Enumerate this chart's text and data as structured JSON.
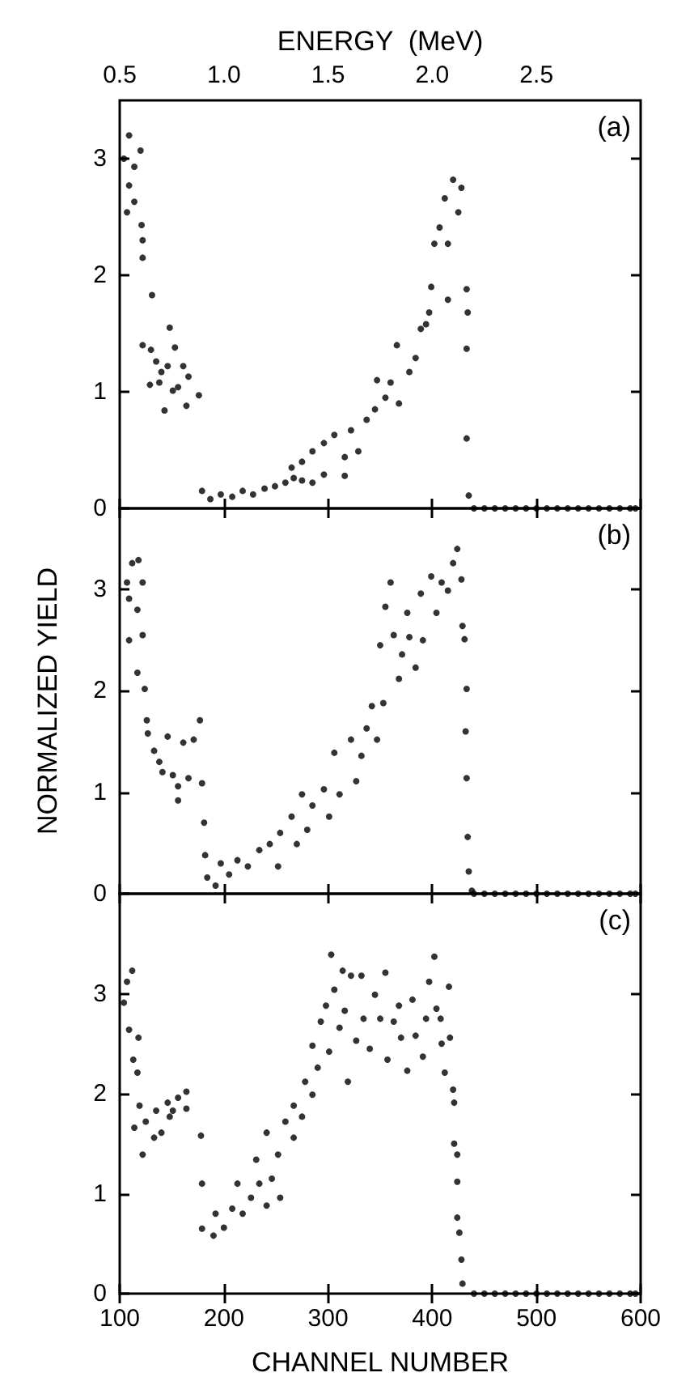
{
  "chart_data": [
    {
      "type": "scatter",
      "x2label": "ENERGY  (MeV)",
      "x2lim": [
        0.5,
        3.0
      ],
      "x2ticks": [
        0.5,
        {
          "value": 1,
          "label": "1.0"
        },
        1.5,
        {
          "value": 2,
          "label": "2.0"
        },
        2.5
      ],
      "xlim": [
        100,
        600
      ],
      "xticks": [
        100,
        200,
        300,
        400,
        500,
        600
      ],
      "ylim": [
        0,
        3.5
      ],
      "yticks": [
        0,
        1,
        2,
        3
      ],
      "tick_labels": "y",
      "marker": "circle",
      "annotations": [
        "(a)"
      ],
      "series": [
        {
          "color": "#000000",
          "x": [
            109,
            104,
            114,
            120,
            109,
            107,
            114,
            121,
            122,
            122,
            131,
            122,
            130,
            135,
            140,
            129,
            138,
            148,
            151,
            156,
            153,
            161,
            166,
            143,
            164,
            176,
            146,
            179,
            187,
            197,
            208,
            218,
            228,
            239,
            249,
            259,
            267,
            275,
            285,
            296,
            316,
            265,
            275,
            285,
            296,
            306,
            316,
            322,
            329,
            337,
            345,
            347,
            355,
            360,
            368,
            366,
            378,
            384,
            389,
            394,
            397,
            399,
            402,
            407,
            412,
            415,
            420,
            425,
            428,
            415,
            433,
            434,
            433,
            433,
            435,
            440,
            450,
            460,
            470,
            480,
            490,
            500,
            510,
            520,
            530,
            540,
            550,
            560,
            570,
            580,
            590,
            595
          ],
          "values": [
            3.2,
            3.0,
            2.93,
            3.07,
            2.77,
            2.54,
            2.63,
            2.43,
            2.3,
            2.15,
            1.83,
            1.4,
            1.36,
            1.26,
            1.17,
            1.06,
            1.08,
            1.55,
            1.01,
            1.04,
            1.38,
            1.22,
            1.13,
            0.84,
            0.88,
            0.97,
            1.22,
            0.15,
            0.08,
            0.12,
            0.1,
            0.15,
            0.12,
            0.17,
            0.19,
            0.22,
            0.26,
            0.24,
            0.22,
            0.29,
            0.28,
            0.35,
            0.4,
            0.49,
            0.56,
            0.63,
            0.44,
            0.67,
            0.49,
            0.76,
            0.85,
            1.1,
            0.95,
            1.08,
            0.9,
            1.4,
            1.17,
            1.29,
            1.54,
            1.58,
            1.68,
            1.9,
            2.27,
            2.41,
            2.66,
            2.27,
            2.82,
            2.54,
            2.75,
            1.79,
            1.88,
            1.68,
            1.37,
            0.6,
            0.11,
            0,
            0,
            0,
            0,
            0,
            0,
            0,
            0,
            0,
            0,
            0,
            0,
            0,
            0,
            0,
            0,
            0
          ]
        }
      ]
    },
    {
      "type": "scatter",
      "ylabel": "NORMALIZED YIELD",
      "xlim": [
        100,
        600
      ],
      "xticks": [
        100,
        200,
        300,
        400,
        500,
        600
      ],
      "ylim": [
        0,
        3.8
      ],
      "yticks": [
        0,
        1,
        2,
        3
      ],
      "tick_labels": "y",
      "marker": "circle",
      "annotations": [
        "(b)"
      ],
      "series": [
        {
          "color": "#000000",
          "x": [
            107,
            112,
            118,
            109,
            117,
            122,
            109,
            122,
            117,
            124,
            126,
            127,
            133,
            138,
            146,
            141,
            151,
            156,
            161,
            166,
            171,
            177,
            179,
            156,
            181,
            182,
            184,
            192,
            197,
            205,
            213,
            223,
            234,
            244,
            252,
            254,
            265,
            270,
            275,
            280,
            285,
            296,
            301,
            306,
            311,
            322,
            327,
            332,
            337,
            342,
            347,
            353,
            350,
            355,
            360,
            363,
            368,
            371,
            376,
            378,
            384,
            389,
            391,
            399,
            404,
            409,
            415,
            420,
            424,
            428,
            429,
            431,
            433,
            432,
            433,
            434,
            435,
            438,
            440,
            450,
            460,
            470,
            480,
            490,
            500,
            510,
            520,
            530,
            540,
            550,
            560,
            570,
            580,
            590,
            595
          ],
          "values": [
            3.07,
            3.26,
            3.29,
            2.91,
            2.8,
            3.07,
            2.5,
            2.55,
            2.18,
            2.02,
            1.71,
            1.58,
            1.41,
            1.3,
            1.55,
            1.2,
            1.17,
            1.06,
            1.49,
            1.14,
            1.52,
            1.71,
            1.09,
            0.92,
            0.7,
            0.38,
            0.16,
            0.08,
            0.3,
            0.19,
            0.33,
            0.27,
            0.43,
            0.49,
            0.27,
            0.6,
            0.76,
            0.49,
            0.98,
            0.63,
            0.87,
            1.03,
            0.76,
            1.39,
            0.98,
            1.52,
            1.11,
            1.36,
            1.63,
            1.85,
            1.52,
            1.88,
            2.45,
            2.83,
            3.07,
            2.55,
            2.12,
            2.36,
            2.77,
            2.53,
            2.23,
            2.96,
            2.5,
            3.13,
            2.77,
            3.07,
            2.99,
            3.26,
            3.4,
            3.1,
            2.64,
            2.51,
            2.02,
            1.6,
            1.14,
            0.56,
            0.22,
            0.03,
            0,
            0,
            0,
            0,
            0,
            0,
            0,
            0,
            0,
            0,
            0,
            0,
            0,
            0,
            0,
            0,
            0
          ]
        }
      ]
    },
    {
      "type": "scatter",
      "xlabel": "CHANNEL NUMBER",
      "xlim": [
        100,
        600
      ],
      "xticks": [
        100,
        200,
        300,
        400,
        500,
        600
      ],
      "ylim": [
        0,
        4.0
      ],
      "yticks": [
        0,
        1,
        2,
        3
      ],
      "marker": "circle",
      "annotations": [
        "(c)"
      ],
      "series": [
        {
          "color": "#000000",
          "x": [
            104,
            107,
            112,
            109,
            118,
            113,
            117,
            119,
            114,
            122,
            125,
            133,
            135,
            140,
            146,
            151,
            156,
            164,
            164,
            148,
            178,
            179,
            179,
            190,
            192,
            200,
            208,
            213,
            218,
            226,
            231,
            234,
            241,
            241,
            246,
            252,
            254,
            259,
            267,
            267,
            275,
            278,
            285,
            285,
            290,
            293,
            298,
            301,
            303,
            306,
            311,
            314,
            316,
            319,
            322,
            327,
            332,
            334,
            340,
            345,
            350,
            355,
            357,
            363,
            368,
            370,
            376,
            381,
            384,
            391,
            394,
            397,
            402,
            404,
            408,
            409,
            412,
            416,
            417,
            420,
            421,
            421,
            424,
            424,
            424,
            426,
            428,
            429,
            440,
            450,
            460,
            470,
            480,
            490,
            500,
            510,
            520,
            530,
            540,
            550,
            560,
            570,
            580,
            590,
            595
          ],
          "values": [
            2.91,
            3.12,
            3.23,
            2.64,
            2.56,
            2.34,
            2.21,
            1.88,
            1.66,
            1.39,
            1.72,
            1.56,
            1.83,
            1.61,
            1.91,
            1.83,
            1.96,
            2.02,
            1.85,
            1.77,
            1.58,
            1.1,
            0.65,
            0.58,
            0.8,
            0.66,
            0.85,
            1.1,
            0.8,
            0.96,
            1.34,
            1.1,
            1.61,
            0.88,
            1.15,
            1.39,
            0.96,
            1.72,
            1.56,
            1.88,
            1.77,
            2.12,
            1.99,
            2.48,
            2.26,
            2.72,
            2.88,
            2.42,
            3.39,
            3.04,
            2.66,
            3.23,
            2.83,
            2.12,
            3.18,
            2.53,
            3.18,
            2.75,
            2.45,
            2.99,
            2.75,
            3.21,
            2.34,
            2.72,
            2.88,
            2.56,
            2.23,
            2.94,
            2.58,
            2.37,
            2.75,
            3.12,
            3.37,
            2.85,
            2.75,
            2.5,
            2.21,
            3.07,
            2.56,
            2.04,
            1.91,
            1.5,
            1.39,
            1.12,
            0.76,
            0.61,
            0.34,
            0.1,
            0,
            0,
            0,
            0,
            0,
            0,
            0,
            0,
            0,
            0,
            0,
            0,
            0,
            0,
            0,
            0,
            0
          ]
        }
      ]
    }
  ]
}
